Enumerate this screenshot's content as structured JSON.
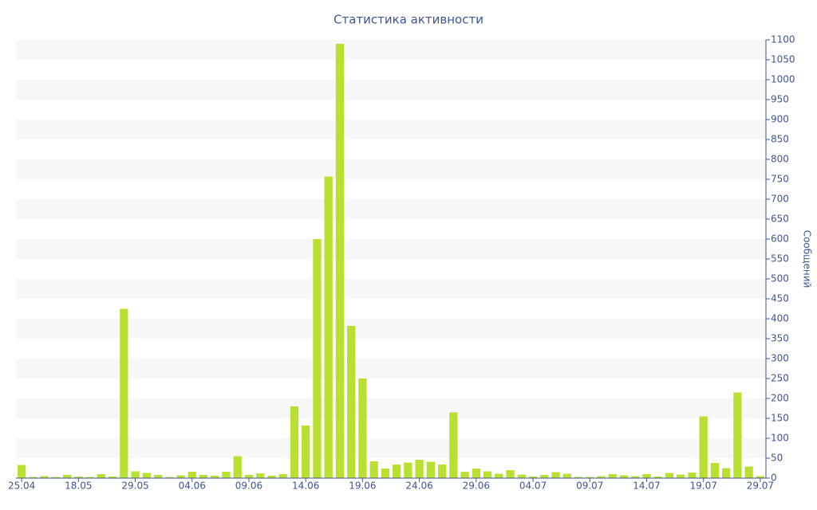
{
  "chart_data": {
    "type": "bar",
    "title": "Статистика активности",
    "y_axis_label": "Сообщений",
    "categories": [
      "25.04",
      null,
      null,
      null,
      null,
      "18.05",
      null,
      null,
      null,
      null,
      "29.05",
      null,
      null,
      null,
      null,
      "04.06",
      null,
      null,
      null,
      null,
      "09.06",
      null,
      null,
      null,
      null,
      "14.06",
      null,
      null,
      null,
      null,
      "19.06",
      null,
      null,
      null,
      null,
      "24.06",
      null,
      null,
      null,
      null,
      "29.06",
      null,
      null,
      null,
      null,
      "04.07",
      null,
      null,
      null,
      null,
      "09.07",
      null,
      null,
      null,
      null,
      "14.07",
      null,
      null,
      null,
      null,
      "19.07",
      null,
      null,
      null,
      null,
      "29.07"
    ],
    "values": [
      33,
      3,
      5,
      3,
      8,
      4,
      3,
      10,
      4,
      425,
      17,
      13,
      8,
      3,
      7,
      16,
      8,
      6,
      16,
      55,
      8,
      12,
      6,
      10,
      180,
      132,
      600,
      757,
      1090,
      382,
      250,
      42,
      24,
      34,
      39,
      46,
      41,
      34,
      165,
      16,
      24,
      17,
      11,
      20,
      9,
      4,
      8,
      15,
      11,
      3,
      3,
      5,
      10,
      7,
      5,
      10,
      4,
      13,
      9,
      14,
      155,
      38,
      25,
      215,
      29,
      5
    ],
    "color": "#b9e030",
    "ylim": [
      0,
      1100
    ],
    "yticks": [
      0,
      50,
      100,
      150,
      200,
      250,
      300,
      350,
      400,
      450,
      500,
      550,
      600,
      650,
      700,
      750,
      800,
      850,
      900,
      950,
      1000,
      1050,
      1100
    ],
    "y_axis_side": "right",
    "striped_background": true
  }
}
